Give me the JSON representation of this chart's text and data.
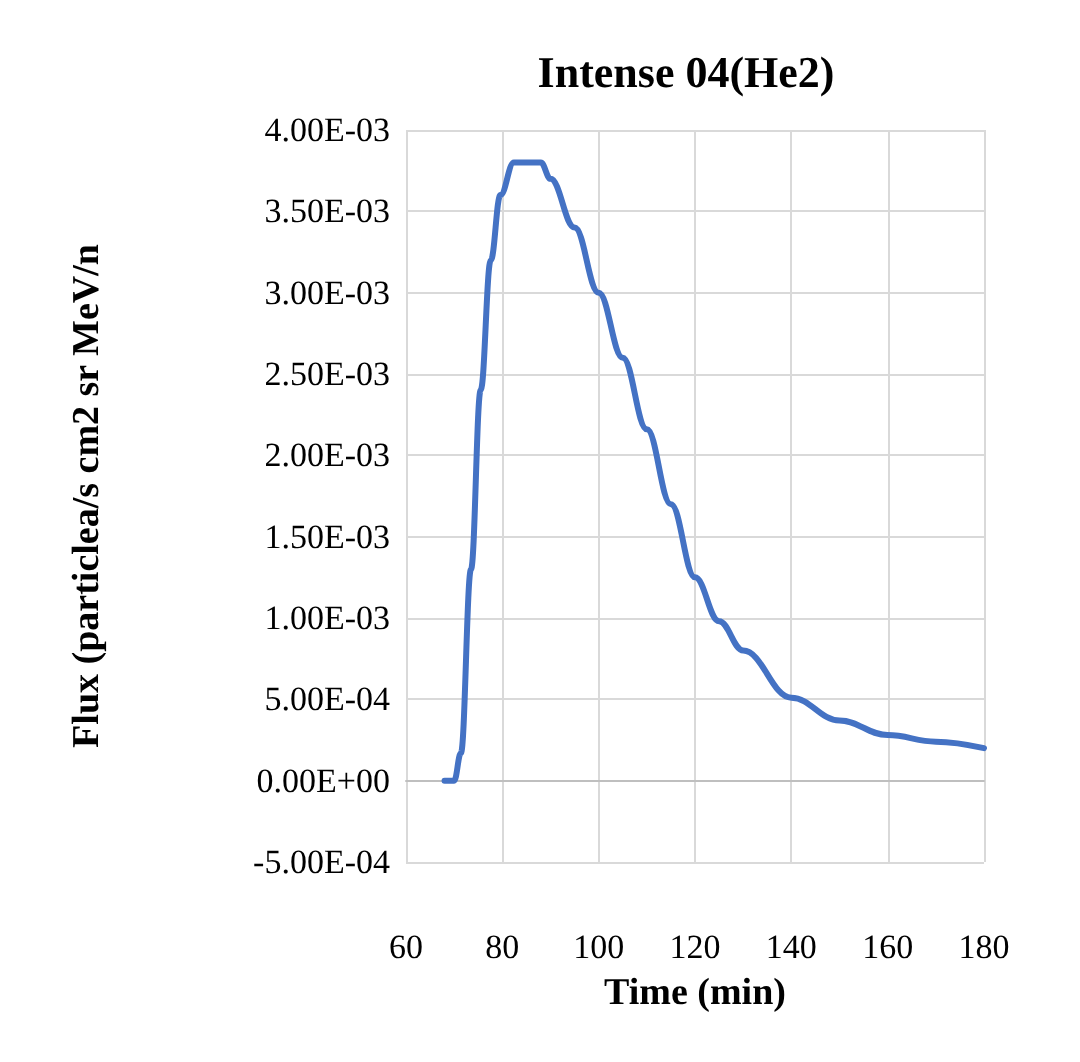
{
  "chart_data": {
    "type": "line",
    "title": "Intense 04(He2)",
    "xlabel": "Time (min)",
    "ylabel": "Flux (particlea/s cm2 sr MeV/n",
    "grid": true,
    "marker": "none",
    "line_style": "solid",
    "xlim": [
      60,
      180
    ],
    "xticks": [
      60,
      80,
      100,
      120,
      140,
      160,
      180
    ],
    "ylim": [
      -0.0005,
      0.004
    ],
    "yticks": [
      {
        "value": -0.0005,
        "label": "-5.00E-04"
      },
      {
        "value": 0,
        "label": "0.00E+00"
      },
      {
        "value": 0.0005,
        "label": "5.00E-04"
      },
      {
        "value": 0.001,
        "label": "1.00E-03"
      },
      {
        "value": 0.0015,
        "label": "1.50E-03"
      },
      {
        "value": 0.002,
        "label": "2.00E-03"
      },
      {
        "value": 0.0025,
        "label": "2.50E-03"
      },
      {
        "value": 0.003,
        "label": "3.00E-03"
      },
      {
        "value": 0.0035,
        "label": "3.50E-03"
      },
      {
        "value": 0.004,
        "label": "4.00E-03"
      }
    ],
    "x": [
      68,
      70,
      71.4,
      73.5,
      75.5,
      77.6,
      79.6,
      82.4,
      85.7,
      88,
      90,
      95,
      100,
      105,
      110,
      115,
      120,
      125,
      130,
      140,
      150,
      160,
      170,
      180
    ],
    "series": [
      {
        "color": "#4472c4",
        "values": [
          0,
          0,
          0.00017,
          0.0013,
          0.0024,
          0.0032,
          0.0036,
          0.0038,
          0.0038,
          0.0038,
          0.0037,
          0.0034,
          0.003,
          0.0026,
          0.00216,
          0.0017,
          0.00125,
          0.00098,
          0.0008,
          0.00051,
          0.00037,
          0.00028,
          0.00024,
          0.0002
        ]
      }
    ]
  }
}
